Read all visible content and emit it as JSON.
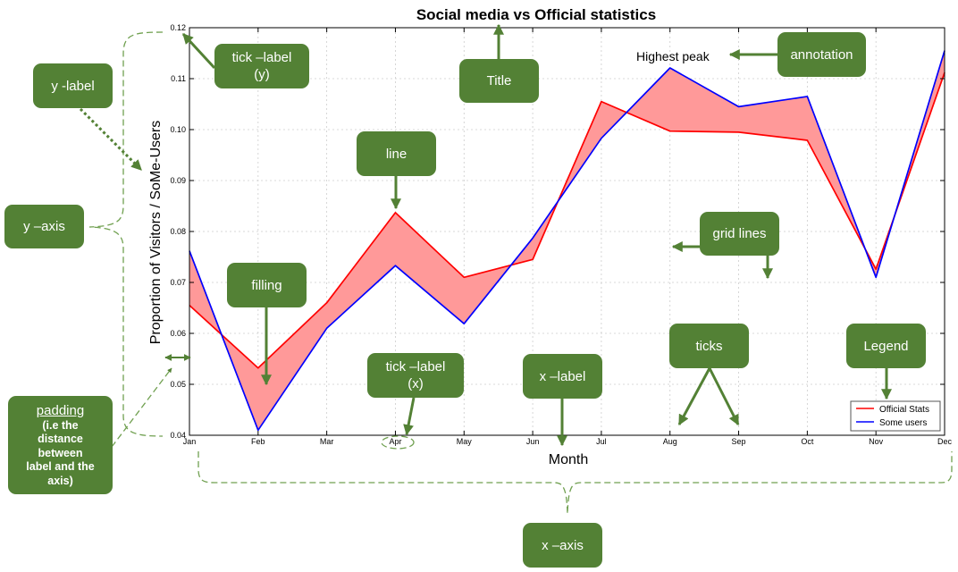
{
  "chart_data": {
    "type": "line",
    "title": "Social media vs Official statistics",
    "xlabel": "Month",
    "ylabel": "Proportion of Visitors / SoMe-Users",
    "categories": [
      "Jan",
      "Feb",
      "Mar",
      "Apr",
      "May",
      "Jun",
      "Jul",
      "Aug",
      "Sep",
      "Oct",
      "Nov",
      "Dec"
    ],
    "ylim": [
      0.04,
      0.12
    ],
    "yticks": [
      "0.04",
      "0.05",
      "0.06",
      "0.07",
      "0.08",
      "0.09",
      "0.10",
      "0.11",
      "0.12"
    ],
    "grid": true,
    "fill_between": true,
    "fill_color": "#ff9999",
    "series": [
      {
        "name": "Official Stats",
        "color": "#ff0000",
        "values": [
          0.0655,
          0.0532,
          0.066,
          0.0837,
          0.071,
          0.0745,
          0.1055,
          0.0997,
          0.0995,
          0.0979,
          0.0726,
          0.1112
        ]
      },
      {
        "name": "Some users",
        "color": "#0000ff",
        "values": [
          0.0762,
          0.041,
          0.061,
          0.0733,
          0.0619,
          0.0787,
          0.0983,
          0.1121,
          0.1045,
          0.1065,
          0.071,
          0.1155
        ]
      }
    ],
    "legend_position": "bottom-right",
    "annotation": {
      "text": "Highest peak"
    }
  },
  "callouts": {
    "title": "Title",
    "annotation": "annotation",
    "tick_label_y": [
      "tick –label",
      "(y)"
    ],
    "y_label": "y -label",
    "y_axis": "y –axis",
    "line": "line",
    "grid_lines": "grid lines",
    "filling": "filling",
    "tick_label_x": [
      "tick –label",
      "(x)"
    ],
    "x_label": "x –label",
    "ticks": "ticks",
    "legend": "Legend",
    "padding_title": "padding",
    "padding_sub": [
      "(i.e the",
      "distance",
      "between",
      "label and the",
      "axis)"
    ],
    "x_axis": "x –axis"
  },
  "colors": {
    "callout_bg": "#538135",
    "callout_text": "#ffffff",
    "arrow": "#538135"
  }
}
